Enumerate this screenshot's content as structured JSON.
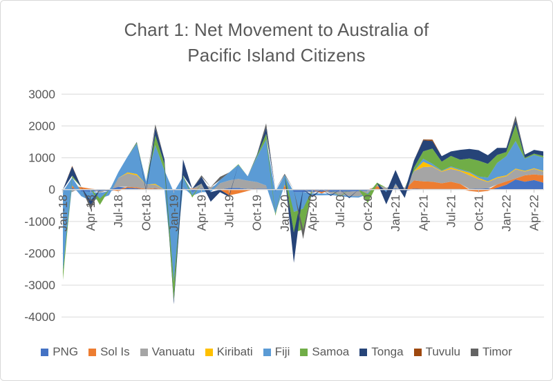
{
  "window": {
    "background": "#FFFFFF",
    "border_color": "#D8D8D8"
  },
  "chart": {
    "title_lines": {
      "line1": "Chart 1: Net Movement to Australia of",
      "line2": "Pacific Island Citizens"
    },
    "title_color": "#595959",
    "axis_label_color": "#595959",
    "gridline_color": "#D9D9D9",
    "axis_line_color": "#DCDCDC",
    "tick_color": "#BFBFBF"
  },
  "chart_data": {
    "type": "area",
    "stacked": true,
    "title": "Chart 1: Net Movement to Australia of Pacific Island Citizens",
    "xlabel": "",
    "ylabel": "",
    "ylim": [
      -4000,
      3000
    ],
    "ytick_step": 1000,
    "yticks": [
      3000,
      2000,
      1000,
      0,
      -1000,
      -2000,
      -3000,
      -4000
    ],
    "grid": true,
    "legend_position": "bottom",
    "x_tick_every": 3,
    "x": [
      "Jan-18",
      "Feb-18",
      "Mar-18",
      "Apr-18",
      "May-18",
      "Jun-18",
      "Jul-18",
      "Aug-18",
      "Sep-18",
      "Oct-18",
      "Nov-18",
      "Dec-18",
      "Jan-19",
      "Feb-19",
      "Mar-19",
      "Apr-19",
      "May-19",
      "Jun-19",
      "Jul-19",
      "Aug-19",
      "Sep-19",
      "Oct-19",
      "Nov-19",
      "Dec-19",
      "Jan-20",
      "Feb-20",
      "Mar-20",
      "Apr-20",
      "May-20",
      "Jun-20",
      "Jul-20",
      "Aug-20",
      "Sep-20",
      "Oct-20",
      "Nov-20",
      "Dec-20",
      "Jan-21",
      "Feb-21",
      "Mar-21",
      "Apr-21",
      "May-21",
      "Jun-21",
      "Jul-21",
      "Aug-21",
      "Sep-21",
      "Oct-21",
      "Nov-21",
      "Dec-21",
      "Jan-22",
      "Feb-22",
      "Mar-22",
      "Apr-22",
      "May-22"
    ],
    "series": [
      {
        "name": "PNG",
        "color": "#4472C4",
        "values": [
          -60,
          40,
          -60,
          -70,
          -50,
          -50,
          90,
          60,
          40,
          0,
          30,
          0,
          -80,
          30,
          -70,
          30,
          0,
          0,
          50,
          50,
          20,
          30,
          30,
          -60,
          20,
          -80,
          -80,
          -80,
          -70,
          -70,
          -60,
          -60,
          -50,
          -40,
          20,
          -30,
          40,
          -40,
          30,
          20,
          20,
          20,
          20,
          20,
          20,
          30,
          40,
          60,
          150,
          320,
          250,
          300,
          220
        ]
      },
      {
        "name": "Sol Is",
        "color": "#ED7D31",
        "values": [
          0,
          60,
          80,
          30,
          0,
          0,
          -50,
          30,
          30,
          20,
          20,
          0,
          0,
          0,
          30,
          0,
          0,
          0,
          -180,
          -120,
          -40,
          0,
          0,
          0,
          80,
          0,
          0,
          0,
          -50,
          0,
          0,
          0,
          0,
          0,
          90,
          0,
          0,
          0,
          260,
          240,
          230,
          180,
          230,
          160,
          -40,
          -70,
          -40,
          100,
          110,
          30,
          200,
          180,
          230
        ]
      },
      {
        "name": "Vanuatu",
        "color": "#A5A5A5",
        "values": [
          0,
          -80,
          0,
          0,
          -50,
          0,
          280,
          420,
          380,
          140,
          100,
          0,
          0,
          50,
          0,
          160,
          80,
          200,
          240,
          290,
          260,
          210,
          100,
          0,
          0,
          0,
          0,
          -40,
          0,
          -60,
          -100,
          -140,
          -160,
          -60,
          40,
          60,
          120,
          60,
          290,
          450,
          470,
          360,
          400,
          400,
          430,
          300,
          200,
          200,
          160,
          290,
          120,
          170,
          120
        ]
      },
      {
        "name": "Kiribati",
        "color": "#FFC000",
        "values": [
          0,
          30,
          0,
          0,
          0,
          0,
          0,
          30,
          40,
          0,
          30,
          0,
          0,
          0,
          0,
          0,
          0,
          0,
          0,
          0,
          0,
          0,
          0,
          0,
          60,
          0,
          0,
          0,
          0,
          0,
          0,
          0,
          0,
          0,
          0,
          0,
          0,
          0,
          0,
          170,
          30,
          20,
          50,
          30,
          80,
          40,
          20,
          30,
          30,
          20,
          20,
          20,
          20
        ]
      },
      {
        "name": "Fiji",
        "color": "#5B9BD5",
        "values": [
          -2500,
          250,
          -150,
          -280,
          -180,
          -130,
          180,
          500,
          950,
          100,
          1220,
          600,
          -2820,
          330,
          -120,
          -80,
          -80,
          100,
          250,
          440,
          140,
          790,
          1440,
          -700,
          300,
          -620,
          -520,
          -60,
          -60,
          -40,
          -40,
          -40,
          -40,
          -40,
          0,
          -50,
          40,
          0,
          0,
          90,
          60,
          20,
          30,
          30,
          30,
          40,
          120,
          450,
          600,
          870,
          380,
          420,
          420
        ]
      },
      {
        "name": "Samoa",
        "color": "#70AD47",
        "values": [
          -280,
          60,
          0,
          0,
          -200,
          0,
          0,
          0,
          40,
          0,
          300,
          200,
          -600,
          40,
          -60,
          0,
          0,
          0,
          0,
          20,
          0,
          40,
          180,
          -60,
          0,
          -650,
          -650,
          0,
          0,
          0,
          -30,
          0,
          0,
          -280,
          70,
          0,
          0,
          0,
          110,
          235,
          480,
          280,
          330,
          300,
          420,
          500,
          430,
          250,
          130,
          510,
          30,
          40,
          50
        ]
      },
      {
        "name": "Tonga",
        "color": "#264478",
        "values": [
          0,
          290,
          0,
          -150,
          0,
          0,
          0,
          0,
          20,
          -60,
          240,
          150,
          -100,
          500,
          0,
          210,
          -300,
          -80,
          -50,
          0,
          0,
          30,
          200,
          0,
          0,
          -950,
          0,
          -60,
          0,
          -30,
          0,
          -30,
          0,
          0,
          0,
          -380,
          420,
          -220,
          230,
          345,
          240,
          170,
          140,
          310,
          300,
          330,
          270,
          220,
          130,
          135,
          100,
          120,
          140
        ]
      },
      {
        "name": "Tuvulu",
        "color": "#9E480E",
        "values": [
          0,
          20,
          0,
          0,
          0,
          0,
          0,
          0,
          0,
          0,
          0,
          0,
          0,
          0,
          0,
          0,
          0,
          0,
          0,
          0,
          0,
          0,
          0,
          0,
          0,
          0,
          0,
          0,
          0,
          0,
          0,
          0,
          0,
          0,
          0,
          0,
          0,
          0,
          0,
          20,
          40,
          0,
          0,
          0,
          0,
          0,
          0,
          0,
          0,
          0,
          0,
          0,
          0
        ]
      },
      {
        "name": "Timor",
        "color": "#636363",
        "values": [
          0,
          0,
          0,
          -130,
          0,
          0,
          0,
          0,
          0,
          0,
          110,
          0,
          0,
          0,
          0,
          50,
          0,
          100,
          0,
          0,
          0,
          0,
          130,
          0,
          40,
          0,
          -300,
          0,
          0,
          0,
          0,
          0,
          0,
          0,
          0,
          0,
          0,
          0,
          0,
          10,
          0,
          0,
          0,
          0,
          0,
          0,
          0,
          0,
          0,
          145,
          0,
          0,
          0
        ]
      }
    ]
  }
}
